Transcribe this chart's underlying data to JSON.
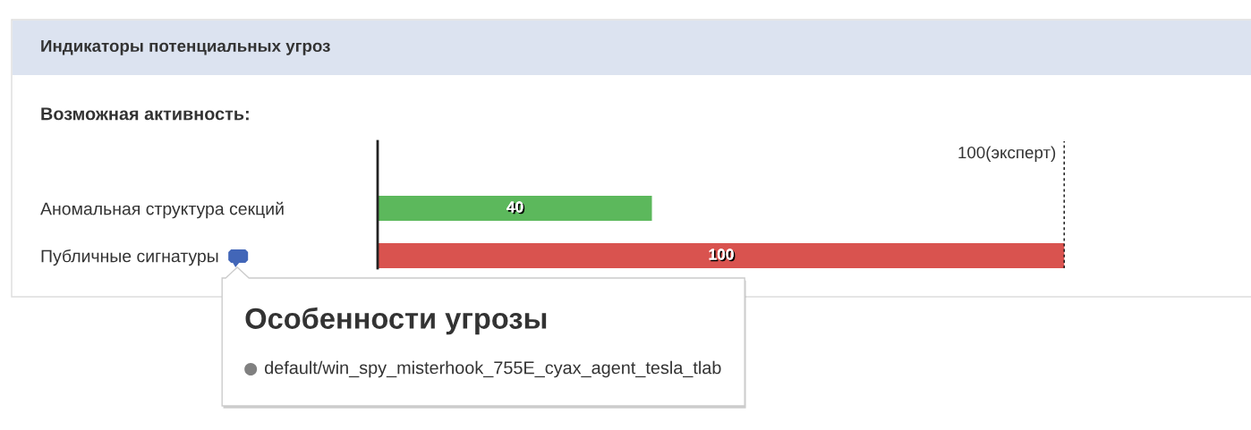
{
  "chart_data": {
    "type": "bar",
    "orientation": "horizontal",
    "title": "Индикаторы потенциальных угроз",
    "subtitle": "Возможная активность:",
    "categories": [
      "Аномальная структура секций",
      "Публичные сигнатуры"
    ],
    "values": [
      40,
      100
    ],
    "colors": [
      "#5cb85c",
      "#d9534f"
    ],
    "xlim": [
      0,
      100
    ],
    "tick_labels": "y",
    "data_labels": true,
    "ref_lines": [
      {
        "axis": "x",
        "value": 100,
        "label": "100(эксперт)",
        "color": "#222222",
        "line_style": "dotted"
      }
    ],
    "annotations": [
      "Особенности угрозы",
      "default/win_spy_misterhook_755E_cyax_agent_tesla_tlab"
    ]
  }
}
